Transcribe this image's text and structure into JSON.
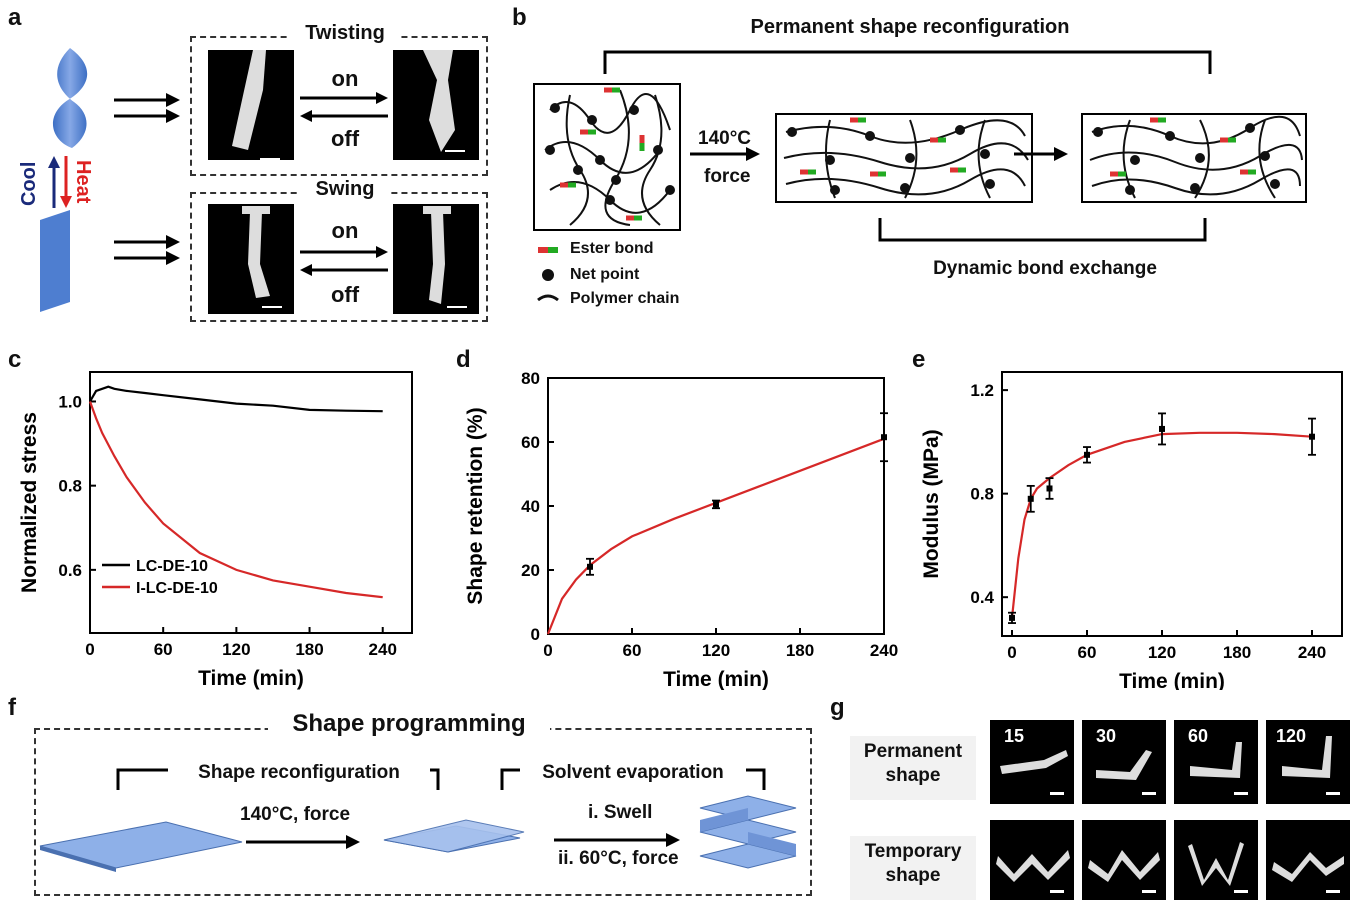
{
  "panels": {
    "a": "a",
    "b": "b",
    "c": "c",
    "d": "d",
    "e": "e",
    "f": "f",
    "g": "g"
  },
  "panel_a": {
    "twisting": "Twisting",
    "swing": "Swing",
    "on": "on",
    "off": "off",
    "cool": "Cool",
    "heat": "Heat"
  },
  "panel_b": {
    "title": "Permanent shape reconfiguration",
    "temp": "140°C",
    "force": "force",
    "dynamic": "Dynamic bond exchange",
    "legend": [
      "Ester bond",
      "Net point",
      "Polymer chain"
    ]
  },
  "panel_f": {
    "title": "Shape programming",
    "reconfig": "Shape reconfiguration",
    "solvent": "Solvent evaporation",
    "step1": "140°C, force",
    "step2a": "i. Swell",
    "step2b": "ii. 60°C, force"
  },
  "panel_g": {
    "row1": [
      "Permanent",
      "shape"
    ],
    "row2": [
      "Temporary",
      "shape"
    ],
    "times": [
      "15",
      "30",
      "60",
      "120"
    ]
  },
  "chart_data": [
    {
      "type": "line",
      "panel": "c",
      "xlabel": "Time (min)",
      "ylabel": "Normalized stress",
      "xlim": [
        0,
        264
      ],
      "ylim": [
        0.45,
        1.07
      ],
      "xticks": [
        0,
        60,
        120,
        180,
        240
      ],
      "yticks": [
        0.6,
        0.8,
        1.0
      ],
      "yticklabels": [
        "0.6",
        "0.8",
        "1.0"
      ],
      "legend_position": "bottom-left",
      "series": [
        {
          "name": "LC-DE-10",
          "color": "#000000",
          "x": [
            0,
            5,
            10,
            15,
            20,
            30,
            45,
            60,
            90,
            120,
            150,
            180,
            210,
            240
          ],
          "y": [
            1.0,
            1.025,
            1.03,
            1.035,
            1.03,
            1.025,
            1.02,
            1.015,
            1.005,
            0.995,
            0.99,
            0.98,
            0.978,
            0.977
          ]
        },
        {
          "name": "I-LC-DE-10",
          "color": "#d62828",
          "x": [
            0,
            5,
            10,
            20,
            30,
            45,
            60,
            90,
            120,
            150,
            180,
            210,
            240
          ],
          "y": [
            1.0,
            0.96,
            0.925,
            0.87,
            0.82,
            0.76,
            0.71,
            0.64,
            0.6,
            0.575,
            0.56,
            0.545,
            0.535
          ]
        }
      ]
    },
    {
      "type": "line",
      "panel": "d",
      "xlabel": "Time (min)",
      "ylabel": "Shape retention (%)",
      "xlim": [
        0,
        240
      ],
      "ylim": [
        0,
        80
      ],
      "xticks": [
        0,
        60,
        120,
        180,
        240
      ],
      "yticks": [
        0,
        20,
        40,
        60,
        80
      ],
      "series": [
        {
          "name": "",
          "color": "#d62828",
          "x": [
            0,
            10,
            20,
            30,
            45,
            60,
            90,
            120,
            150,
            180,
            210,
            240
          ],
          "y": [
            0,
            11,
            17,
            21.5,
            26.5,
            30.5,
            36,
            41,
            46,
            51,
            56,
            61
          ]
        }
      ],
      "points": {
        "x": [
          30,
          120,
          240
        ],
        "y": [
          21,
          40.5,
          61.5
        ],
        "err": [
          2.5,
          1.2,
          7.5
        ]
      }
    },
    {
      "type": "line",
      "panel": "e",
      "xlabel": "Time (min)",
      "ylabel": "Modulus (MPa)",
      "xlim": [
        -8,
        264
      ],
      "ylim": [
        0.25,
        1.27
      ],
      "xticks": [
        0,
        60,
        120,
        180,
        240
      ],
      "yticks": [
        0.4,
        0.8,
        1.2
      ],
      "yticklabels": [
        "0.4",
        "0.8",
        "1.2"
      ],
      "series": [
        {
          "name": "",
          "color": "#d62828",
          "x": [
            0,
            5,
            10,
            15,
            20,
            30,
            45,
            60,
            90,
            120,
            150,
            180,
            210,
            240
          ],
          "y": [
            0.32,
            0.55,
            0.7,
            0.78,
            0.82,
            0.86,
            0.91,
            0.95,
            1.0,
            1.03,
            1.035,
            1.035,
            1.03,
            1.02
          ]
        }
      ],
      "points": {
        "x": [
          0,
          15,
          30,
          60,
          120,
          240
        ],
        "y": [
          0.32,
          0.78,
          0.82,
          0.95,
          1.05,
          1.02
        ],
        "err": [
          0.02,
          0.05,
          0.04,
          0.03,
          0.06,
          0.07
        ]
      }
    }
  ]
}
